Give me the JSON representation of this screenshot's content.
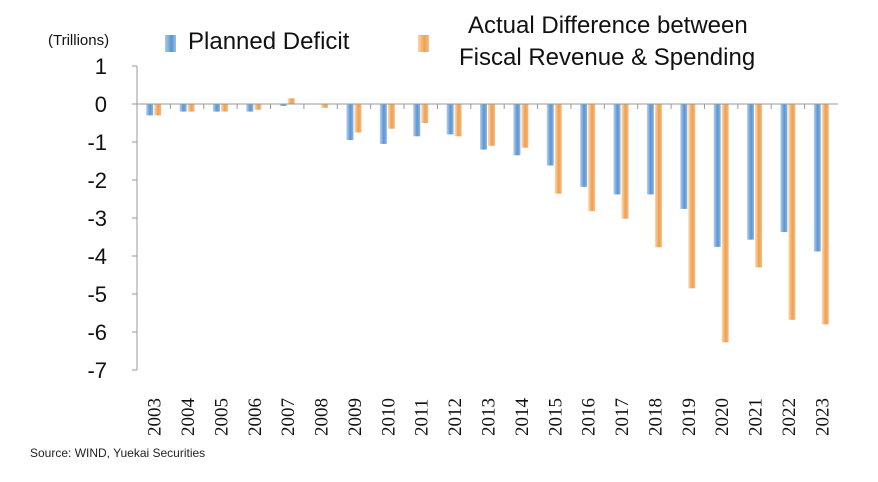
{
  "chart_data": {
    "type": "bar",
    "unit_label": "(Trillions)",
    "categories": [
      "2003",
      "2004",
      "2005",
      "2006",
      "2007",
      "2008",
      "2009",
      "2010",
      "2011",
      "2012",
      "2013",
      "2014",
      "2015",
      "2016",
      "2017",
      "2018",
      "2019",
      "2020",
      "2021",
      "2022",
      "2023"
    ],
    "series": [
      {
        "name": "Planned Deficit",
        "values": [
          -0.3,
          -0.2,
          -0.2,
          -0.2,
          -0.05,
          0,
          -0.95,
          -1.05,
          -0.85,
          -0.8,
          -1.2,
          -1.35,
          -1.62,
          -2.18,
          -2.38,
          -2.38,
          -2.76,
          -3.76,
          -3.57,
          -3.37,
          -3.88
        ]
      },
      {
        "name": "Actual Difference between Fiscal Revenue & Spending",
        "name_lines": [
          "Actual Difference between",
          "Fiscal Revenue & Spending"
        ],
        "values": [
          -0.3,
          -0.2,
          -0.2,
          -0.15,
          0.15,
          -0.1,
          -0.75,
          -0.65,
          -0.5,
          -0.85,
          -1.1,
          -1.15,
          -2.36,
          -2.82,
          -3.02,
          -3.77,
          -4.85,
          -6.27,
          -4.3,
          -5.68,
          -5.8
        ]
      }
    ],
    "ylim": [
      -7,
      1
    ],
    "yticks": [
      1,
      0,
      -1,
      -2,
      -3,
      -4,
      -5,
      -6,
      -7
    ],
    "colors": {
      "planned": "#5b96d3",
      "actual": "#f19c4c",
      "axis": "#999999"
    },
    "grid": false,
    "legend_position": "top"
  },
  "source": "Source: WIND, Yuekai Securities"
}
